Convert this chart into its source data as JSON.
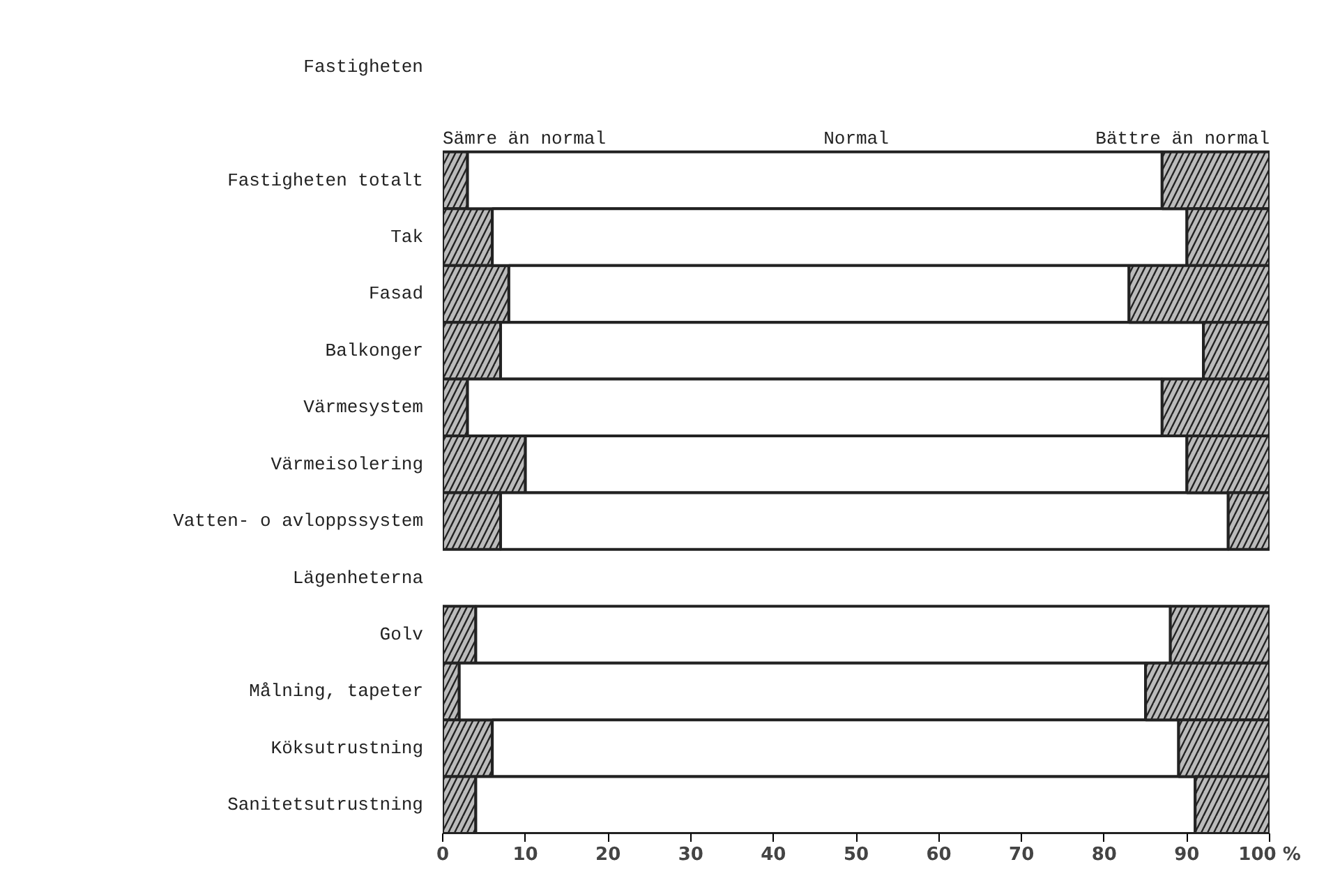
{
  "chart_data": {
    "type": "bar",
    "orientation": "horizontal",
    "stacked": true,
    "categories": [
      "Fastigheten",
      null,
      "Fastigheten totalt",
      "Tak",
      "Fasad",
      "Balkonger",
      "Värmesystem",
      "Värmeisolering",
      "Vatten- o avloppssystem",
      "Lägenheterna",
      "Golv",
      "Målning, tapeter",
      "Köksutrustning",
      "Sanitetsutrustning"
    ],
    "series": [
      {
        "name": "Sämre än normal",
        "color": "#bbbbbb",
        "values": [
          null,
          null,
          3,
          6,
          8,
          7,
          3,
          10,
          7,
          null,
          4,
          2,
          6,
          4
        ]
      },
      {
        "name": "Normal",
        "color": "#ffffff",
        "values": [
          null,
          null,
          84,
          84,
          75,
          85,
          84,
          80,
          88,
          null,
          84,
          83,
          83,
          87
        ]
      },
      {
        "name": "Bättre än normal",
        "color": "#bbbbbb",
        "values": [
          null,
          null,
          13,
          10,
          17,
          8,
          13,
          10,
          5,
          null,
          12,
          15,
          11,
          9
        ]
      }
    ],
    "xlim": [
      0,
      100
    ],
    "xticks": [
      0,
      10,
      20,
      30,
      40,
      50,
      60,
      70,
      80,
      90,
      {
        "value": 100,
        "label": "100 %"
      }
    ],
    "grid": false
  }
}
